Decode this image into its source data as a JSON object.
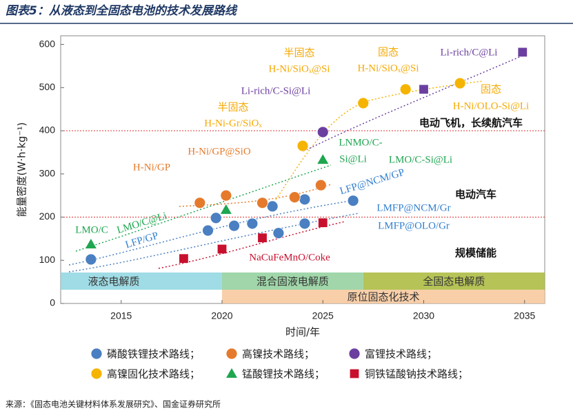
{
  "title": "图表5：从液态到全固态电池的技术发展路线",
  "source": "来源：《固态电池关键材料体系发展研究》、国金证券研究所",
  "chart_data": {
    "type": "scatter",
    "x_label": "时间/年",
    "y_label": "能量密度(W·h·kg⁻¹)",
    "xlim": [
      2012,
      2036
    ],
    "ylim": [
      0,
      620
    ],
    "xticks": [
      2015,
      2020,
      2025,
      2030,
      2035
    ],
    "yticks": [
      0,
      100,
      200,
      300,
      400,
      500,
      600
    ],
    "reference_lines": [
      400,
      200
    ],
    "series": [
      {
        "name": "磷酸铁锂技术路线；",
        "color": "#4a7fc1",
        "marker": "circle",
        "x": [
          2013.5,
          2019.3,
          2019.7,
          2020.6,
          2021.5,
          2022.5,
          2022.8,
          2024.1,
          2024.1,
          2026.5
        ],
        "values": [
          102,
          169,
          198,
          180,
          185,
          225,
          163,
          185,
          241,
          238
        ]
      },
      {
        "name": "高镍技术路线；",
        "color": "#e57a2c",
        "marker": "circle",
        "x": [
          2018.9,
          2020.2,
          2022.0,
          2023.6,
          2024.9
        ],
        "values": [
          233,
          250,
          233,
          246,
          274
        ]
      },
      {
        "name": "富锂技术路线；",
        "color": "#6b3fa0",
        "marker": "circle",
        "markers": [
          "circle",
          "square",
          "square"
        ],
        "x": [
          2025.0,
          2030.0,
          2034.9
        ],
        "values": [
          397,
          496,
          582
        ]
      },
      {
        "name": "高镍固化技术路线；",
        "color": "#f5b400",
        "marker": "circle",
        "x": [
          2024.0,
          2027.0,
          2029.1,
          2031.8
        ],
        "values": [
          365,
          464,
          496,
          510
        ]
      },
      {
        "name": "锰酸锂技术路线；",
        "color": "#1ea650",
        "marker": "triangle",
        "x": [
          2013.5,
          2020.2,
          2025.0
        ],
        "values": [
          137,
          217,
          333
        ]
      },
      {
        "name": "铜铁锰酸钠技术路线；",
        "color": "#c8102e",
        "marker": "square",
        "x": [
          2018.1,
          2020.0,
          2022.0,
          2025.0
        ],
        "values": [
          104,
          126,
          152,
          187
        ]
      }
    ],
    "bands": [
      {
        "label": "液态电解质",
        "x": [
          2012,
          2020
        ],
        "color": "#8fd6e0"
      },
      {
        "label": "混合固液电解质",
        "x": [
          2020,
          2027
        ],
        "color": "#8fcf9a"
      },
      {
        "label": "全固态电解质",
        "x": [
          2027,
          2036
        ],
        "color": "#a8b83a"
      },
      {
        "label": "原位固态化技术",
        "x": [
          2020,
          2036
        ],
        "color": "#f7c79a"
      }
    ],
    "annotations": [
      {
        "text": "半固态",
        "color": "#f5a800"
      },
      {
        "text": "H-Ni/SiOₓ@Si",
        "color": "#f5a800"
      },
      {
        "text": "固态",
        "color": "#f5a800"
      },
      {
        "text": "H-Ni/SiOₓ@Si",
        "color": "#f5a800"
      },
      {
        "text": "Li-rich/C@Li",
        "color": "#6b3fa0"
      },
      {
        "text": "Li-rich/C-Si@Li",
        "color": "#6b3fa0"
      },
      {
        "text": "半固态",
        "color": "#f5a800"
      },
      {
        "text": "H-Ni-Gr/SiOₓ",
        "color": "#f5a800"
      },
      {
        "text": "固态",
        "color": "#f5a800"
      },
      {
        "text": "H-Ni/OLO-Si@Li",
        "color": "#f5a800"
      },
      {
        "text": "电动飞机，长续航汽车",
        "color": "#111111"
      },
      {
        "text": "LNMO/C-",
        "color": "#1ea650"
      },
      {
        "text": "Si@Li",
        "color": "#1ea650"
      },
      {
        "text": "LMO/C-Si@Li",
        "color": "#1ea650"
      },
      {
        "text": "H-Ni/GP@SiO",
        "color": "#e57a2c"
      },
      {
        "text": "H-Ni/GP",
        "color": "#e57a2c"
      },
      {
        "text": "LFP@NCM/GP",
        "color": "#2f7fd0"
      },
      {
        "text": "电动汽车",
        "color": "#111111"
      },
      {
        "text": "LMO/C",
        "color": "#1ea650"
      },
      {
        "text": "LMO/C@Li",
        "color": "#1ea650"
      },
      {
        "text": "LFP/GP",
        "color": "#2f7fd0"
      },
      {
        "text": "LMFP@NCM/Gr",
        "color": "#2f7fd0"
      },
      {
        "text": "LMFP@OLO/Gr",
        "color": "#2f7fd0"
      },
      {
        "text": "规模储能",
        "color": "#111111"
      },
      {
        "text": "NaCuFeMnO/Coke",
        "color": "#c8102e"
      }
    ]
  }
}
